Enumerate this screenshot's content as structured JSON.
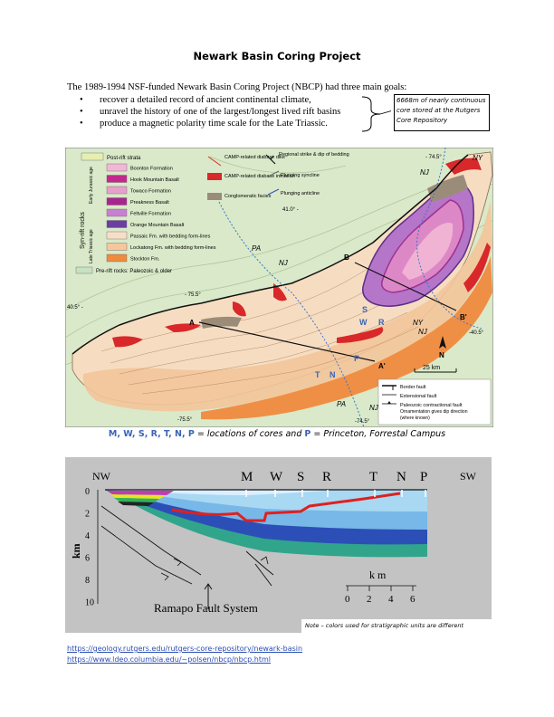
{
  "title": "Newark Basin Coring Project",
  "intro": "The 1989-1994 NSF-funded Newark Basin Coring Project (NBCP) had three main goals:",
  "goals": [
    "recover a detailed record of ancient continental climate,",
    "unravel the history of one of the largest/longest lived rift basins",
    "produce a magnetic polarity time scale for the Late Triassic."
  ],
  "note_box": {
    "line1": "6668m of nearly continuous",
    "line2": "core stored at the Rutgers",
    "line3": "Core Repository"
  },
  "map": {
    "legend": {
      "post_rift": "Post-rift strata",
      "syn_rift": "Syn-rift rocks",
      "early_jurassic": "Early Jurassic age",
      "late_triassic": "Late Triassic age",
      "units": [
        {
          "name": "Boonton Formation",
          "color": "#f2b7d6"
        },
        {
          "name": "Hook Mountain Basalt",
          "color": "#c4288c"
        },
        {
          "name": "Towaco Formation",
          "color": "#e7a0cc"
        },
        {
          "name": "Preakness Basalt",
          "color": "#a8258e"
        },
        {
          "name": "Feltville Formation",
          "color": "#c97fd2"
        },
        {
          "name": "Orange Mountain Basalt",
          "color": "#6a3fa1"
        },
        {
          "name": "Passaic Fm. with bedding form-lines",
          "color": "#f7dfc7"
        },
        {
          "name": "Lockatong Fm. with bedding form-lines",
          "color": "#f6c79c"
        },
        {
          "name": "Stockton Fm.",
          "color": "#f08a3c"
        }
      ],
      "pre_rift": "Pre-rift rocks: Paleozoic & older",
      "camp_dike": "CAMP-related diabase dike",
      "camp_intrusion": "CAMP-related diabase intrusion",
      "conglomerate": "Conglomeratic facies",
      "regional_strike": "Regional strike & dip of bedding",
      "plunging_syncline": "Plunging syncline",
      "plunging_anticline": "Plunging anticline"
    },
    "labels": {
      "ny_top": "NY",
      "nj_top": "NJ",
      "lon_745_top": "- 74.5°",
      "lat_41": "41.0° -",
      "pa_mid": "PA",
      "nj_mid": "NJ",
      "lon_755_top": "- 75.5°",
      "lat_405_left": "40.5° -",
      "ny_right": "NY",
      "nj_right": "NJ",
      "lat_405_right": "-40.5°",
      "pa_bot": "PA",
      "nj_bot": "NJ",
      "lon_755_bot": "-75.5°",
      "lon_745_bot": "-74.5°",
      "a": "A",
      "a_prime": "A'",
      "b": "B",
      "b_prime": "B'",
      "north": "N",
      "scale": "25 km"
    },
    "core_letters": {
      "s": "S",
      "w": "W",
      "r": "R",
      "t": "T",
      "n": "N",
      "p": "P"
    },
    "fault_legend": {
      "border": "Border fault",
      "extensional": "Extensional fault",
      "paleozoic": "Paleozoic contractional fault",
      "ornament": "Ornamentation gives dip direction",
      "where_known": "(where known)"
    }
  },
  "caption": {
    "codes1": "M, W, S, R, T, N, P",
    "text1": " = locations of cores and ",
    "code2": "P",
    "text2": " = Princeton, Forrestal Campus"
  },
  "cross_section": {
    "nw": "NW",
    "sw": "SW",
    "cores": [
      "M",
      "W",
      "S",
      "R",
      "T",
      "N",
      "P"
    ],
    "depth_ticks": [
      "0",
      "2",
      "4",
      "6",
      "8",
      "10"
    ],
    "km_axis": "km",
    "km_scale_label": "k m",
    "scale_ticks": [
      "0",
      "2",
      "4",
      "6"
    ],
    "fault_system": "Ramapo Fault System",
    "note": "Note – colors used for stratigraphic units are different"
  },
  "links": [
    "https://geology.rutgers.edu/rutgers-core-repository/newark-basin",
    "https://www.ldeo.columbia.edu/~polsen/nbcp/nbcp.html"
  ]
}
